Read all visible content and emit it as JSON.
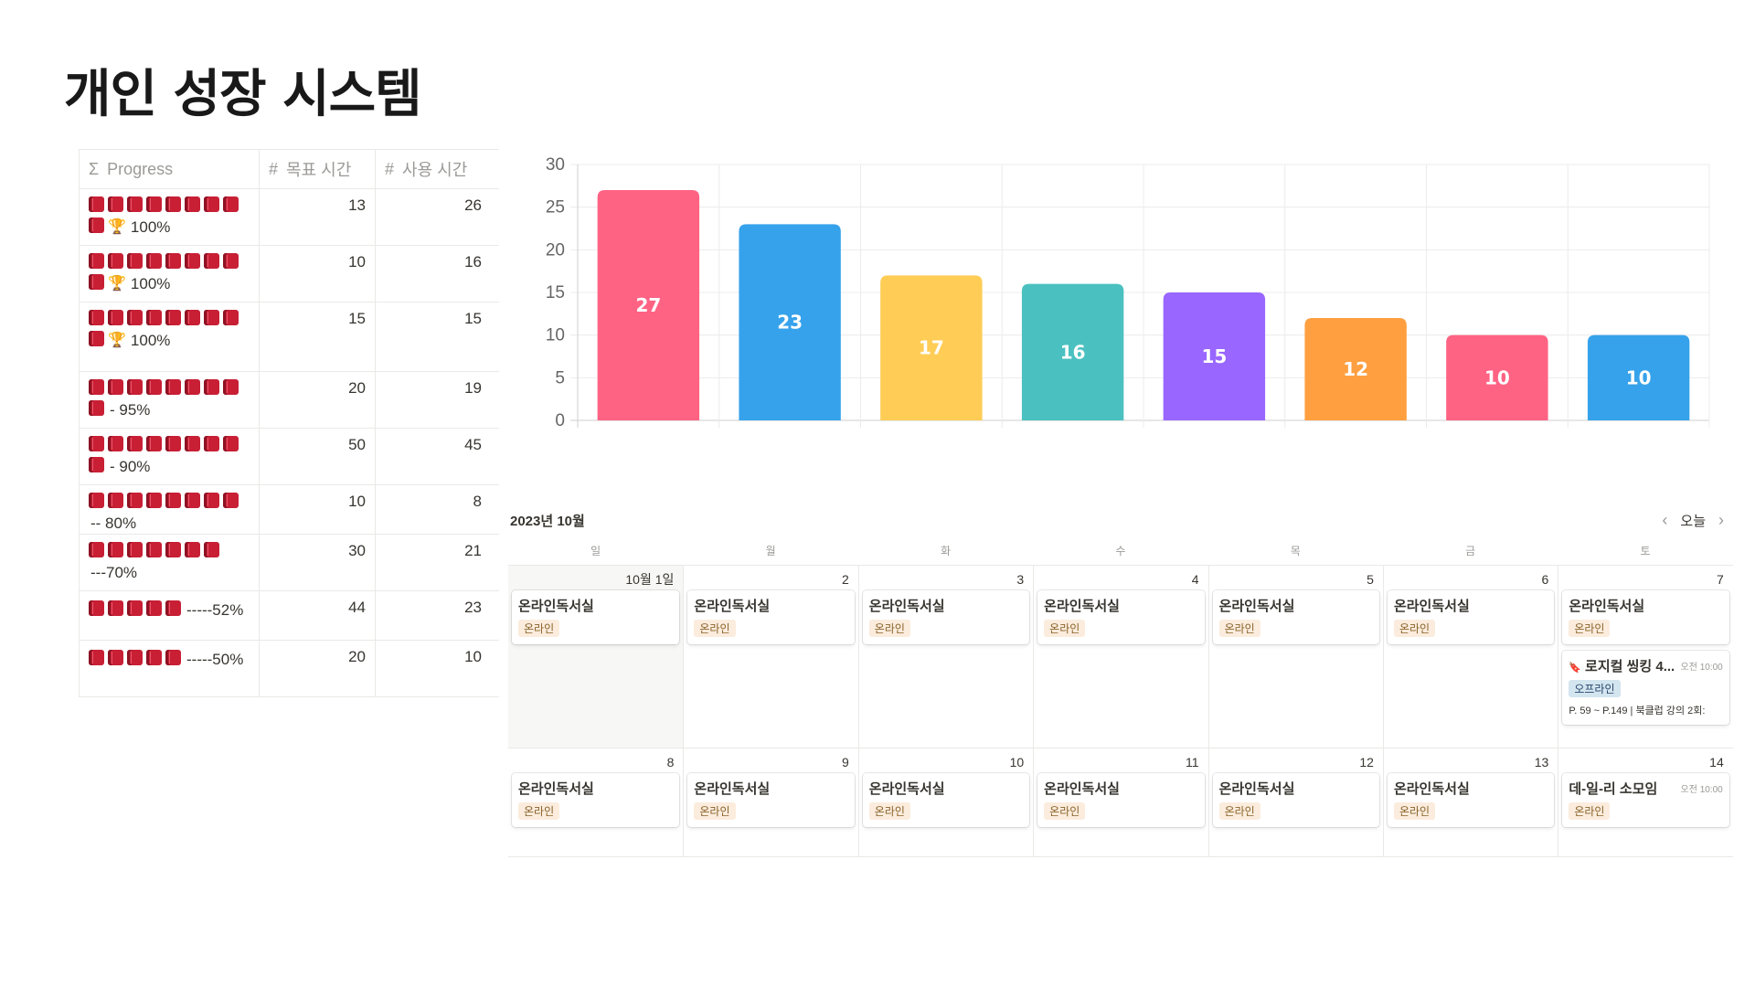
{
  "title": "개인 성장 시스템",
  "table": {
    "columns": [
      {
        "icon": "Σ",
        "label": "Progress"
      },
      {
        "icon": "#",
        "label": "목표 시간"
      },
      {
        "icon": "#",
        "label": "사용 시간"
      }
    ],
    "rows": [
      {
        "books": 9,
        "trophy": true,
        "suffix": "100%",
        "goal": "13",
        "used": "26"
      },
      {
        "books": 9,
        "trophy": true,
        "suffix": "100%",
        "goal": "10",
        "used": "16"
      },
      {
        "books": 9,
        "trophy": true,
        "suffix": "100%",
        "goal": "15",
        "used": "15"
      },
      {
        "books": 9,
        "trophy": false,
        "suffix": "- 95%",
        "goal": "20",
        "used": "19"
      },
      {
        "books": 9,
        "trophy": false,
        "suffix": "- 90%",
        "goal": "50",
        "used": "45"
      },
      {
        "books": 8,
        "trophy": false,
        "suffix": "-- 80%",
        "goal": "10",
        "used": "8"
      },
      {
        "books": 7,
        "trophy": false,
        "suffix": "---70%",
        "goal": "30",
        "used": "21"
      },
      {
        "books": 5,
        "trophy": false,
        "suffix": "-----52%",
        "goal": "44",
        "used": "23"
      },
      {
        "books": 5,
        "trophy": false,
        "suffix": "-----50%",
        "goal": "20",
        "used": "10"
      }
    ]
  },
  "chart_data": {
    "type": "bar",
    "title": "",
    "xlabel": "",
    "ylabel": "",
    "ylim": [
      0,
      30
    ],
    "yticks": [
      0,
      5,
      10,
      15,
      20,
      25,
      30
    ],
    "grid": true,
    "values": [
      27,
      23,
      17,
      16,
      15,
      12,
      10,
      10
    ],
    "colors": [
      "#ff6384",
      "#36a2eb",
      "#ffcd56",
      "#4bc0c0",
      "#9966ff",
      "#ff9f40",
      "#ff6384",
      "#36a2eb"
    ]
  },
  "calendar": {
    "month_label": "2023년 10월",
    "today_label": "오늘",
    "weekdays": [
      "일",
      "월",
      "화",
      "수",
      "목",
      "금",
      "토"
    ],
    "weeks": [
      {
        "days": [
          {
            "num": "10월 1일",
            "muted": true,
            "events": [
              {
                "title": "온라인독서실",
                "tag": "온라인",
                "tag_type": "online"
              }
            ]
          },
          {
            "num": "2",
            "events": [
              {
                "title": "온라인독서실",
                "tag": "온라인",
                "tag_type": "online"
              }
            ]
          },
          {
            "num": "3",
            "events": [
              {
                "title": "온라인독서실",
                "tag": "온라인",
                "tag_type": "online"
              }
            ]
          },
          {
            "num": "4",
            "events": [
              {
                "title": "온라인독서실",
                "tag": "온라인",
                "tag_type": "online"
              }
            ]
          },
          {
            "num": "5",
            "events": [
              {
                "title": "온라인독서실",
                "tag": "온라인",
                "tag_type": "online"
              }
            ]
          },
          {
            "num": "6",
            "events": [
              {
                "title": "온라인독서실",
                "tag": "온라인",
                "tag_type": "online"
              }
            ]
          },
          {
            "num": "7",
            "events": [
              {
                "title": "온라인독서실",
                "tag": "온라인",
                "tag_type": "online"
              },
              {
                "title": "로지컬 씽킹 4...",
                "time": "오전 10:00",
                "pin": true,
                "tag": "오프라인",
                "tag_type": "offline",
                "desc": "P. 59 ~ P.149 | 북클럽 강의 2회:"
              }
            ]
          }
        ]
      },
      {
        "days": [
          {
            "num": "8",
            "events": [
              {
                "title": "온라인독서실",
                "tag": "온라인",
                "tag_type": "online"
              }
            ]
          },
          {
            "num": "9",
            "events": [
              {
                "title": "온라인독서실",
                "tag": "온라인",
                "tag_type": "online"
              }
            ]
          },
          {
            "num": "10",
            "events": [
              {
                "title": "온라인독서실",
                "tag": "온라인",
                "tag_type": "online"
              }
            ]
          },
          {
            "num": "11",
            "events": [
              {
                "title": "온라인독서실",
                "tag": "온라인",
                "tag_type": "online"
              }
            ]
          },
          {
            "num": "12",
            "events": [
              {
                "title": "온라인독서실",
                "tag": "온라인",
                "tag_type": "online"
              }
            ]
          },
          {
            "num": "13",
            "events": [
              {
                "title": "온라인독서실",
                "tag": "온라인",
                "tag_type": "online"
              }
            ]
          },
          {
            "num": "14",
            "events": [
              {
                "title": "데-일-리 소모임",
                "time": "오전 10:00",
                "tag": "온라인",
                "tag_type": "online"
              }
            ]
          }
        ]
      }
    ]
  }
}
